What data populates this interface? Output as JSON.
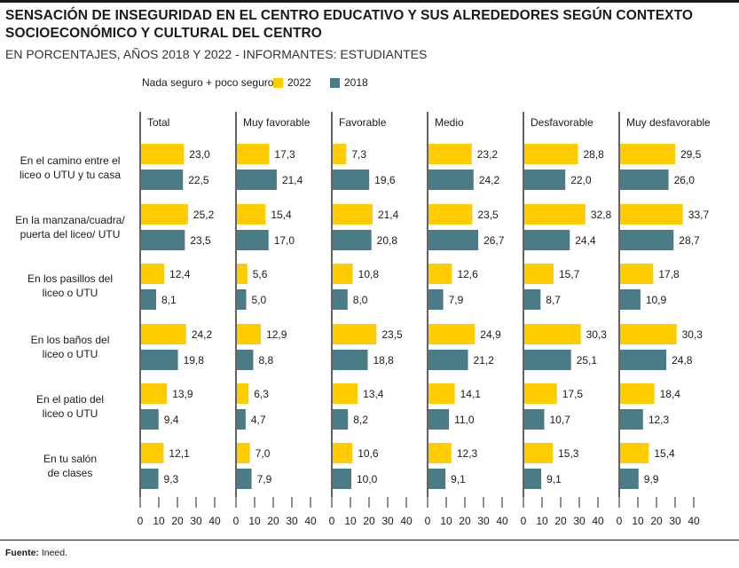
{
  "title": "SENSACIÓN DE INSEGURIDAD EN EL CENTRO EDUCATIVO Y SUS ALREDEDORES SEGÚN CONTEXTO SOCIOECONÓMICO Y CULTURAL DEL CENTRO",
  "subtitle": "EN PORCENTAJES, AÑOS 2018 Y 2022 - INFORMANTES: ESTUDIANTES",
  "source_label": "Fuente:",
  "source_text": " Ineed.",
  "colors": {
    "y2022": "#ffcc00",
    "y2018": "#4a7b86"
  },
  "chart_data": {
    "type": "bar",
    "orientation": "horizontal",
    "legend_label": "Nada seguro + poco seguro",
    "series_names": [
      "2022",
      "2018"
    ],
    "panels": [
      "Total",
      "Muy favorable",
      "Favorable",
      "Medio",
      "Desfavorable",
      "Muy desfavorable"
    ],
    "categories": [
      [
        "En el camino entre el",
        "liceo o UTU y tu casa"
      ],
      [
        "En la manzana/cuadra/",
        "puerta del liceo/ UTU"
      ],
      [
        "En los pasillos del",
        "liceo o UTU"
      ],
      [
        "En los baños del",
        "liceo o UTU"
      ],
      [
        "En el patio del",
        "liceo o UTU"
      ],
      [
        "En tu salón",
        "de clases"
      ]
    ],
    "values_2022": [
      [
        23.0,
        17.3,
        7.3,
        23.2,
        28.8,
        29.5
      ],
      [
        25.2,
        15.4,
        21.4,
        23.5,
        32.8,
        33.7
      ],
      [
        12.4,
        5.6,
        10.8,
        12.6,
        15.7,
        17.8
      ],
      [
        24.2,
        12.9,
        23.5,
        24.9,
        30.3,
        30.3
      ],
      [
        13.9,
        6.3,
        13.4,
        14.1,
        17.5,
        18.4
      ],
      [
        12.1,
        7.0,
        10.6,
        12.3,
        15.3,
        15.4
      ]
    ],
    "values_2018": [
      [
        22.5,
        21.4,
        19.6,
        24.2,
        22.0,
        26.0
      ],
      [
        23.5,
        17.0,
        20.8,
        26.7,
        24.4,
        28.7
      ],
      [
        8.1,
        5.0,
        8.0,
        7.9,
        8.7,
        10.9
      ],
      [
        19.8,
        8.8,
        18.8,
        21.2,
        25.1,
        24.8
      ],
      [
        9.4,
        4.7,
        8.2,
        11.0,
        10.7,
        12.3
      ],
      [
        9.3,
        7.9,
        10.0,
        9.1,
        9.1,
        9.9
      ]
    ],
    "labels_2022": [
      [
        "23,0",
        "17,3",
        "7,3",
        "23,2",
        "28,8",
        "29,5"
      ],
      [
        "25,2",
        "15,4",
        "21,4",
        "23,5",
        "32,8",
        "33,7"
      ],
      [
        "12,4",
        "5,6",
        "10,8",
        "12,6",
        "15,7",
        "17,8"
      ],
      [
        "24,2",
        "12,9",
        "23,5",
        "24,9",
        "30,3",
        "30,3"
      ],
      [
        "13,9",
        "6,3",
        "13,4",
        "14,1",
        "17,5",
        "18,4"
      ],
      [
        "12,1",
        "7,0",
        "10,6",
        "12,3",
        "15,3",
        "15,4"
      ]
    ],
    "labels_2018": [
      [
        "22,5",
        "21,4",
        "19,6",
        "24,2",
        "22,0",
        "26,0"
      ],
      [
        "23,5",
        "17,0",
        "20,8",
        "26,7",
        "24,4",
        "28,7"
      ],
      [
        "8,1",
        "5,0",
        "8,0",
        "7,9",
        "8,7",
        "10,9"
      ],
      [
        "19,8",
        "8,8",
        "18,8",
        "21,2",
        "25,1",
        "24,8"
      ],
      [
        "9,4",
        "4,7",
        "8,2",
        "11,0",
        "10,7",
        "12,3"
      ],
      [
        "9,3",
        "7,9",
        "10,0",
        "9,1",
        "9,1",
        "9,9"
      ]
    ],
    "xticks": [
      "0",
      "10",
      "20",
      "30",
      "40"
    ],
    "xlim": [
      0,
      40
    ]
  }
}
